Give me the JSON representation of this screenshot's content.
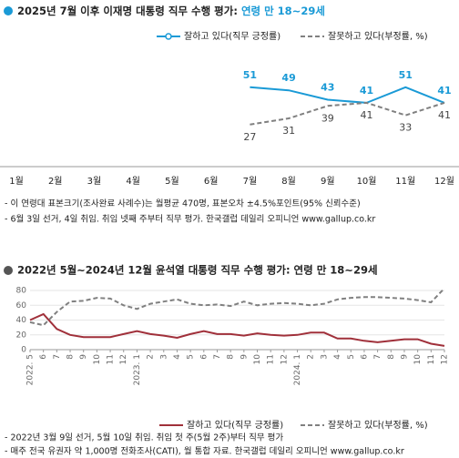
{
  "chart_data": [
    {
      "type": "line",
      "title": "2025년 7월 이후 이재명 대통령 직무 수행 평가:",
      "subtitle": "연령 만 18~29세",
      "categories": [
        "1월",
        "2월",
        "3월",
        "4월",
        "5월",
        "6월",
        "7월",
        "8월",
        "9월",
        "10월",
        "11월",
        "12월"
      ],
      "series": [
        {
          "name": "잘하고 있다(직무 긍정률)",
          "color": "#1a9ad6",
          "dash": false,
          "values": [
            null,
            null,
            null,
            null,
            null,
            null,
            51,
            49,
            43,
            41,
            51,
            41
          ]
        },
        {
          "name": "잘못하고 있다(부정률, %)",
          "color": "#808080",
          "dash": true,
          "values": [
            null,
            null,
            null,
            null,
            null,
            null,
            27,
            31,
            39,
            41,
            33,
            41
          ]
        }
      ],
      "notes": [
        "- 이 연령대 표본크기(조사완료 사례수)는 월평균 470명, 표본오차 ±4.5%포인트(95% 신뢰수준)",
        "- 6월 3일 선거, 4일 취임. 취임 넷째 주부터 직무 평가. 한국갤럽 데일리 오피니언 www.gallup.co.kr"
      ]
    },
    {
      "type": "line",
      "title": "2022년 5월~2024년 12월 윤석열 대통령 직무 수행 평가: 연령 만 18~29세",
      "categories": [
        "2022. 5",
        "6",
        "7",
        "8",
        "9",
        "10",
        "11",
        "12",
        "2023. 1",
        "2",
        "3",
        "4",
        "5",
        "6",
        "7",
        "8",
        "9",
        "10",
        "11",
        "12",
        "2024. 1",
        "2",
        "3",
        "4",
        "5",
        "6",
        "7",
        "8",
        "9",
        "10",
        "11",
        "12"
      ],
      "series": [
        {
          "name": "잘하고 있다(직무 긍정률)",
          "color": "#a0303a",
          "dash": false,
          "values": [
            40,
            48,
            28,
            20,
            17,
            17,
            17,
            21,
            25,
            21,
            19,
            16,
            21,
            25,
            21,
            21,
            19,
            22,
            20,
            19,
            20,
            23,
            23,
            15,
            15,
            12,
            10,
            12,
            14,
            14,
            8,
            5
          ]
        },
        {
          "name": "잘못하고 있다(부정률, %)",
          "color": "#808080",
          "dash": true,
          "values": [
            37,
            33,
            51,
            65,
            66,
            70,
            69,
            60,
            55,
            62,
            65,
            68,
            62,
            60,
            61,
            59,
            65,
            60,
            62,
            63,
            62,
            60,
            62,
            68,
            70,
            71,
            71,
            70,
            69,
            67,
            64,
            83
          ]
        }
      ],
      "ylim": [
        0,
        80
      ],
      "yticks": [
        0,
        20,
        40,
        60,
        80
      ],
      "grid": true,
      "notes": [
        "- 2022년 3월 9일 선거, 5월 10일 취임. 취임 첫 주(5월 2주)부터 직무 평가",
        "- 매주 전국 유권자 약 1,000명 전화조사(CATI), 월 통합 자료. 한국갤럽 데일리 오피니언 www.gallup.co.kr"
      ]
    }
  ]
}
